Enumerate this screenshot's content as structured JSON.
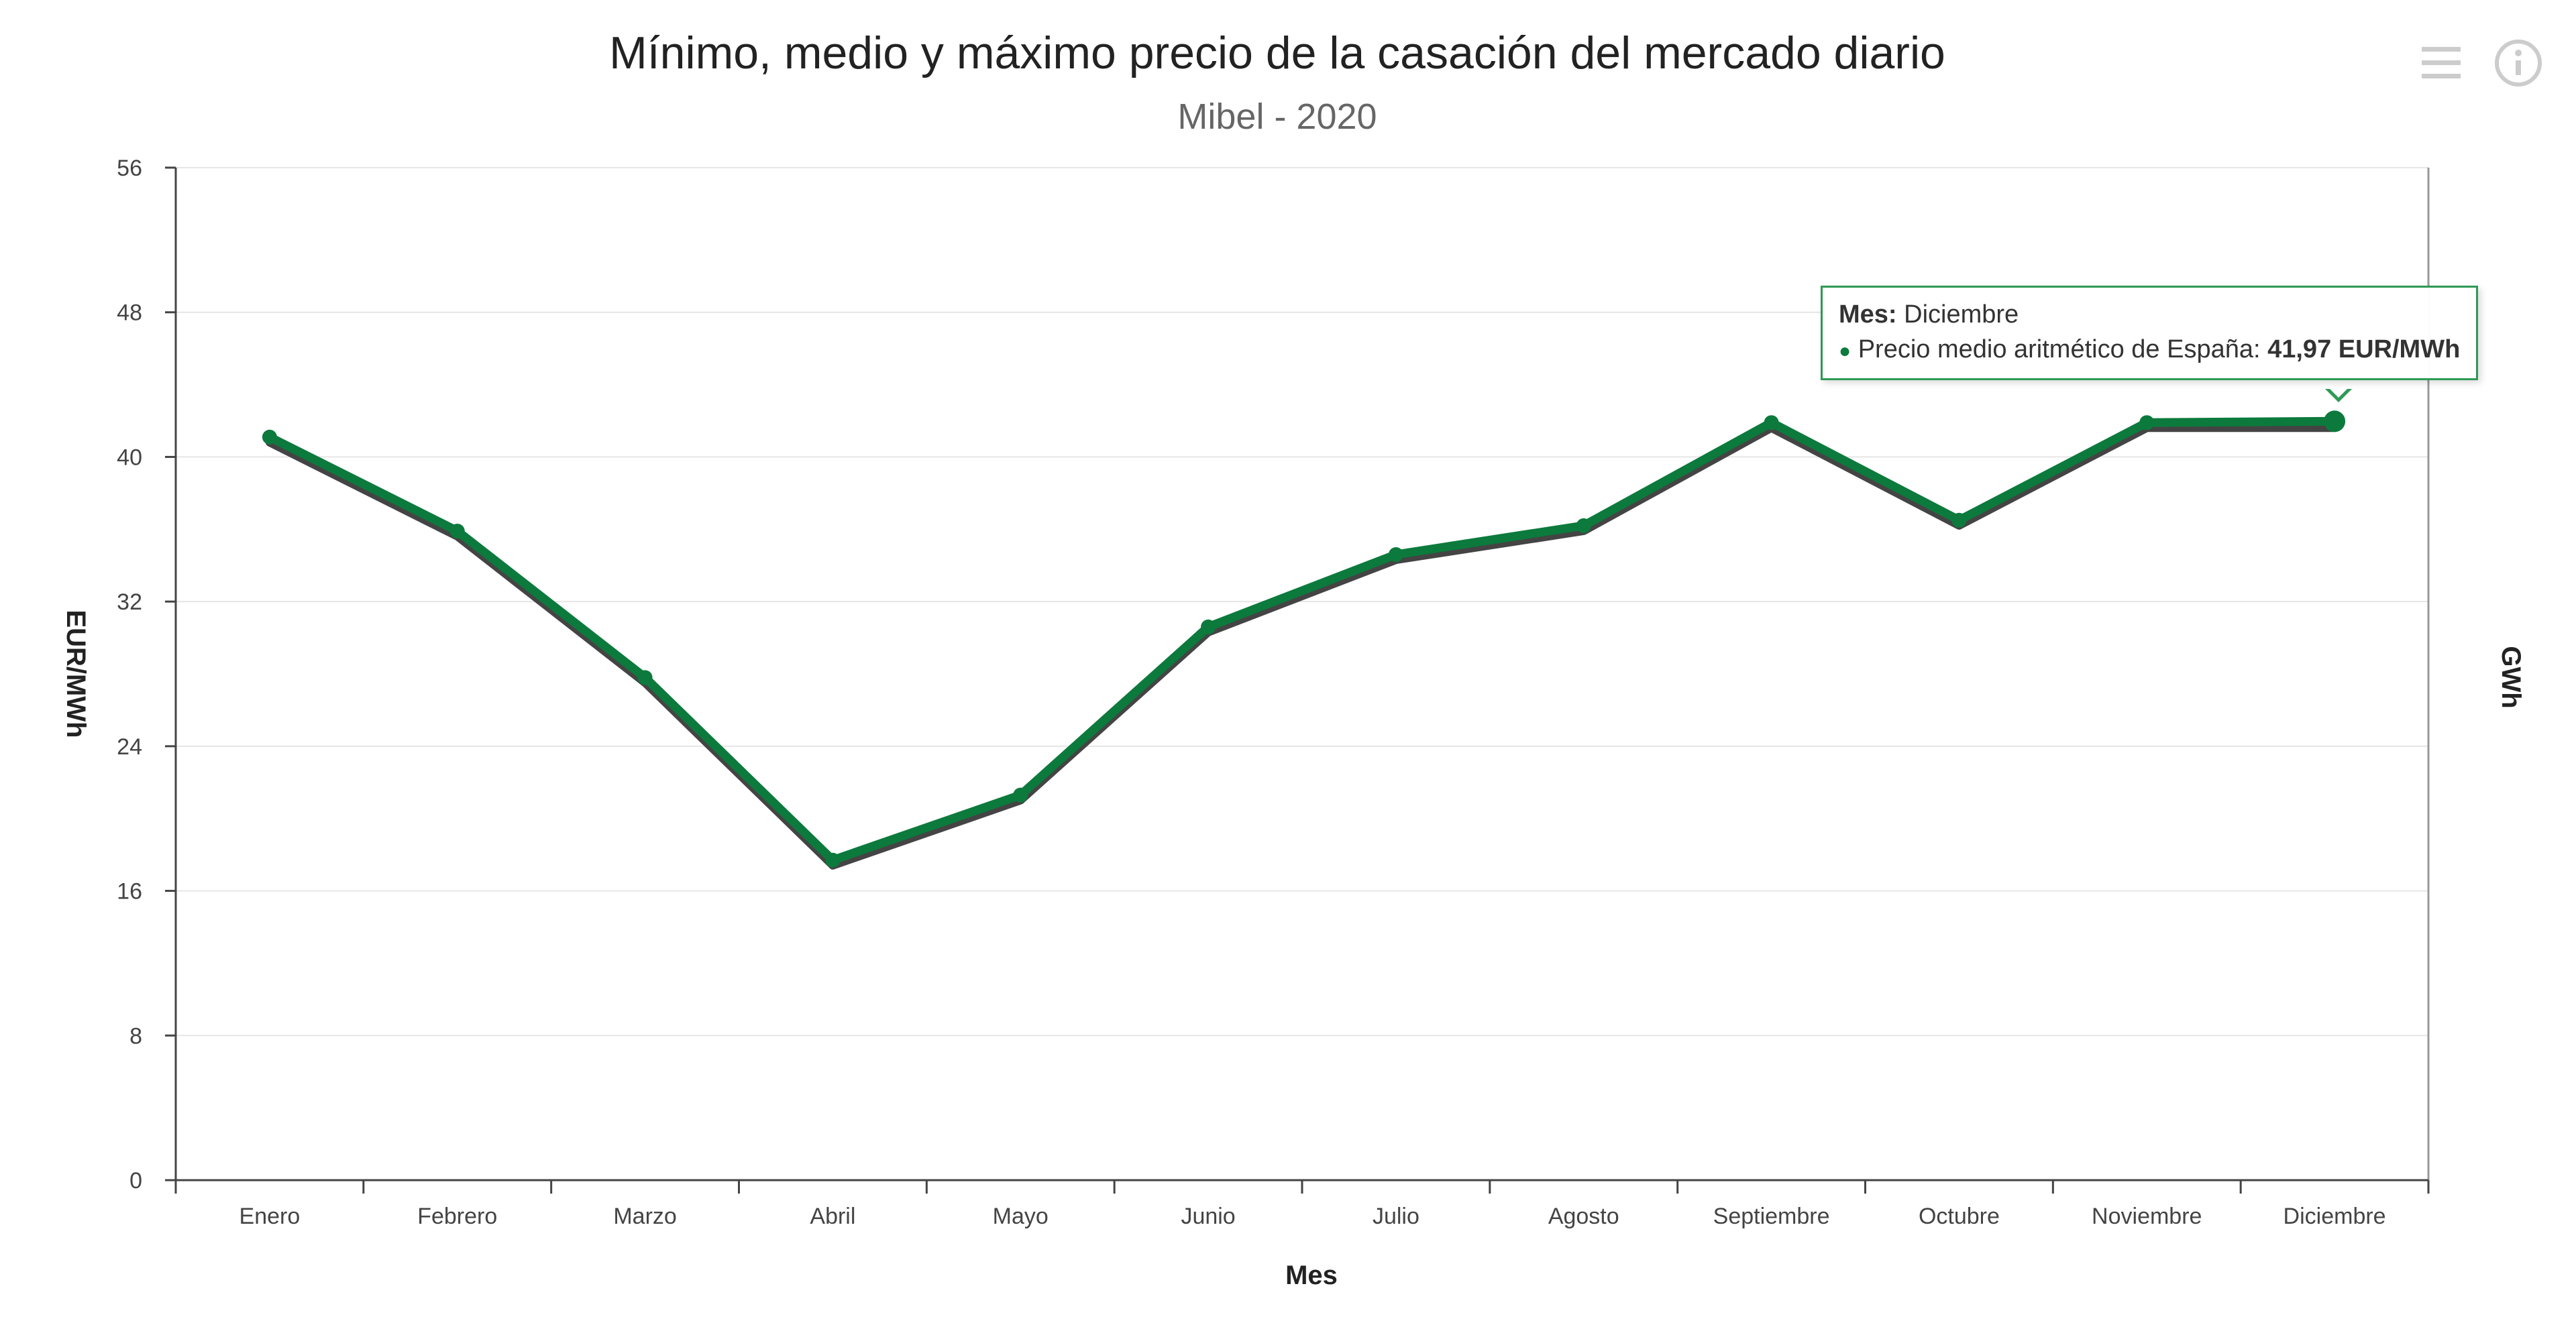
{
  "chart_data": {
    "type": "line",
    "title": "Mínimo, medio y máximo precio de la casación del mercado diario",
    "subtitle": "Mibel - 2020",
    "xlabel": "Mes",
    "ylabel": "EUR/MWh",
    "ylabel_right": "GWh",
    "ylim": [
      0,
      56
    ],
    "yticks": [
      "0",
      "8",
      "16",
      "24",
      "32",
      "40",
      "48",
      "56"
    ],
    "categories": [
      "Enero",
      "Febrero",
      "Marzo",
      "Abril",
      "Mayo",
      "Junio",
      "Julio",
      "Agosto",
      "Septiembre",
      "Octubre",
      "Noviembre",
      "Diciembre"
    ],
    "series": [
      {
        "name": "Precio medio aritmético de España",
        "values": [
          41.1,
          35.9,
          27.8,
          17.7,
          21.3,
          30.6,
          34.6,
          36.2,
          41.9,
          36.5,
          41.9,
          41.97
        ],
        "color": "#0c7a3c"
      },
      {
        "values": [
          40.8,
          35.6,
          27.5,
          17.4,
          21.0,
          30.3,
          34.3,
          35.9,
          41.6,
          36.2,
          41.6,
          41.6
        ],
        "color": "#444444"
      }
    ],
    "grid": true,
    "legend": "none"
  },
  "tooltip": {
    "label": "Mes:",
    "month": "Diciembre",
    "series_label": "Precio medio aritmético de España:",
    "value": "41,97 EUR/MWh"
  },
  "icons": {
    "menu": "hamburger-menu-icon",
    "info": "info-icon"
  },
  "colors": {
    "accent": "#0c7a3c",
    "tooltip_border": "#2e9a55",
    "shadow_line": "#444444"
  }
}
